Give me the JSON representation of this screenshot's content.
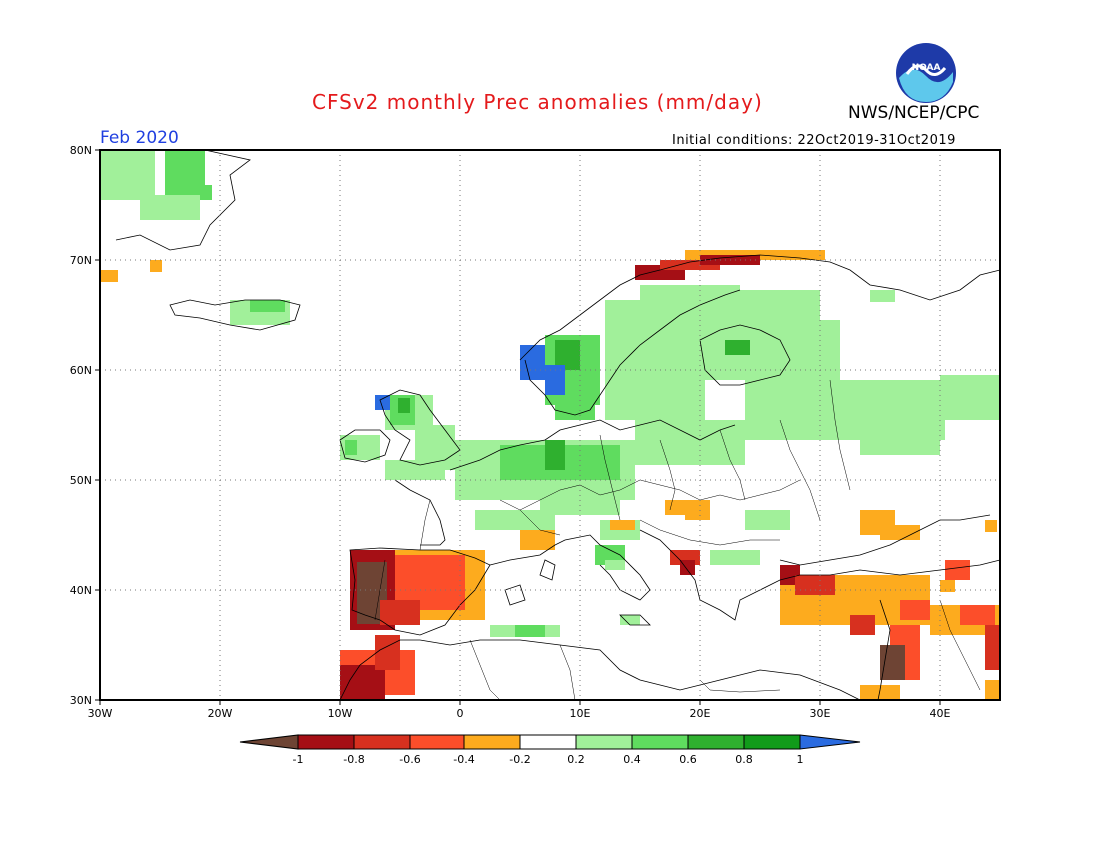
{
  "title": "CFSv2 monthly Prec anomalies (mm/day)",
  "agency": "NWS/NCEP/CPC",
  "logo_text": "NOAA",
  "month": "Feb 2020",
  "initial_conditions": "Initial conditions: 22Oct2019-31Oct2019",
  "lat_ticks": [
    "80N",
    "70N",
    "60N",
    "50N",
    "40N",
    "30N"
  ],
  "lon_ticks": [
    "30W",
    "20W",
    "10W",
    "0",
    "10E",
    "20E",
    "30E",
    "40E"
  ],
  "legend": {
    "labels": [
      "-1",
      "-0.8",
      "-0.6",
      "-0.4",
      "-0.2",
      "0.2",
      "0.4",
      "0.6",
      "0.8",
      "1"
    ],
    "colors": [
      "#6e4434",
      "#a50f15",
      "#d7301f",
      "#fc4e2a",
      "#fdab1e",
      "#ffffff",
      "#a1f09a",
      "#5fdc5f",
      "#2fb02f",
      "#119b1a",
      "#2a6be0"
    ]
  }
}
